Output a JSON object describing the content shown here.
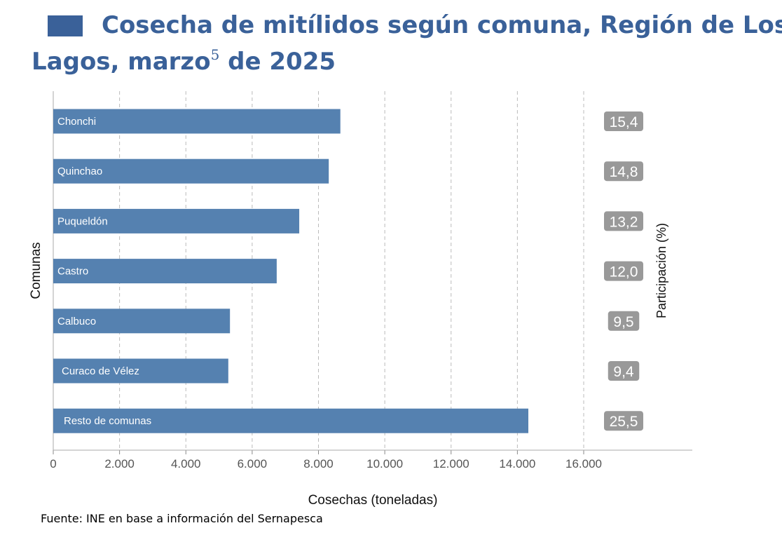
{
  "title_line1": "Cosecha de mitílidos según comuna, Región de Los",
  "title_line2": "Lagos, marzo",
  "title_sup": "5",
  "title_line2_end": " de 2025",
  "source": "Fuente: INE en base a información del Sernapesca",
  "colors": {
    "title": "#3a6199",
    "bar": "#5581b0",
    "pct_box": "#999999"
  },
  "chart_data": {
    "type": "bar",
    "orientation": "horizontal",
    "categories": [
      "Chonchi",
      "Quinchao",
      "Puqueldón",
      "Castro",
      "Calbuco",
      "Curaco de Vélez",
      "Resto de comunas"
    ],
    "values": [
      8660,
      8310,
      7420,
      6740,
      5330,
      5280,
      14330
    ],
    "participation_labels": [
      "15,4",
      "14,8",
      "13,2",
      "12,0",
      "9,5",
      "9,4",
      "25,5"
    ],
    "xlabel": "Cosechas (toneladas)",
    "ylabel": "Comunas",
    "y2label": "Participación (%)",
    "xlim": [
      0,
      16000
    ],
    "xticks": [
      0,
      2000,
      4000,
      6000,
      8000,
      10000,
      12000,
      14000,
      16000
    ],
    "xtick_labels": [
      "0",
      "2.000",
      "4.000",
      "6.000",
      "8.000",
      "10.000",
      "12.000",
      "14.000",
      "16.000"
    ],
    "grid": "vertical dashed"
  }
}
